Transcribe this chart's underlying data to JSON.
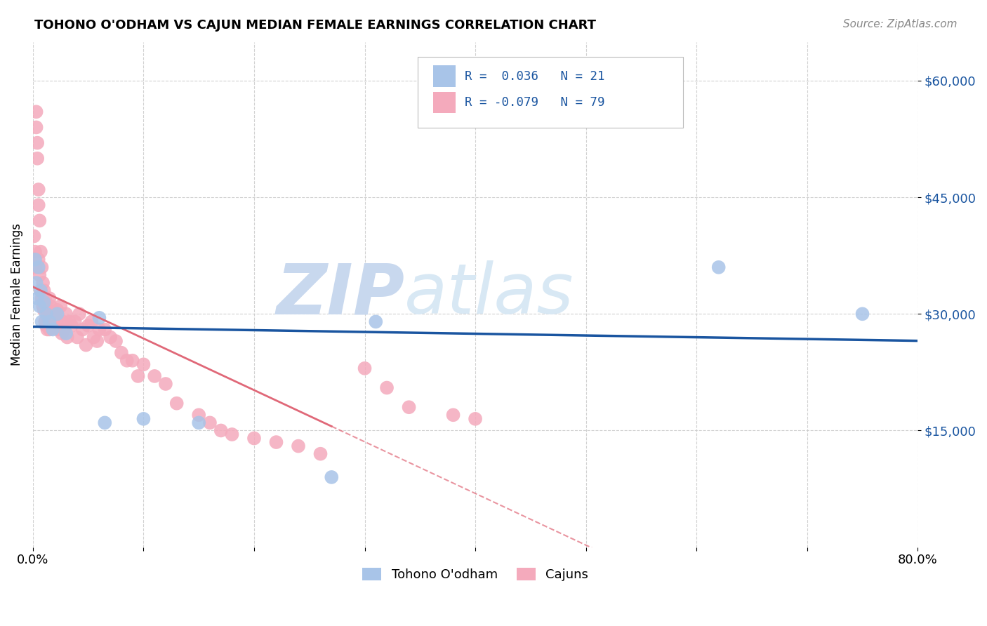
{
  "title": "TOHONO O'ODHAM VS CAJUN MEDIAN FEMALE EARNINGS CORRELATION CHART",
  "source": "Source: ZipAtlas.com",
  "ylabel": "Median Female Earnings",
  "ytick_labels": [
    "$15,000",
    "$30,000",
    "$45,000",
    "$60,000"
  ],
  "ytick_values": [
    15000,
    30000,
    45000,
    60000
  ],
  "ylim": [
    0,
    65000
  ],
  "xlim": [
    0,
    0.8
  ],
  "legend_blue_r": "0.036",
  "legend_blue_n": "21",
  "legend_pink_r": "-0.079",
  "legend_pink_n": "79",
  "legend_label_blue": "Tohono O'odham",
  "legend_label_pink": "Cajuns",
  "blue_color": "#A8C4E8",
  "pink_color": "#F4AABC",
  "blue_line_color": "#1A55A0",
  "pink_line_color": "#E06878",
  "watermark_zip": "ZIP",
  "watermark_atlas": "atlas",
  "watermark_color": "#C8D8EE",
  "blue_points_x": [
    0.002,
    0.003,
    0.004,
    0.005,
    0.006,
    0.007,
    0.008,
    0.01,
    0.012,
    0.015,
    0.018,
    0.022,
    0.03,
    0.06,
    0.065,
    0.1,
    0.15,
    0.27,
    0.31,
    0.62,
    0.75
  ],
  "blue_points_y": [
    37000,
    34000,
    32000,
    36000,
    31000,
    33000,
    29000,
    31500,
    30000,
    29000,
    28000,
    30000,
    27500,
    29500,
    16000,
    16500,
    16000,
    9000,
    29000,
    36000,
    30000
  ],
  "pink_points_x": [
    0.001,
    0.002,
    0.002,
    0.003,
    0.003,
    0.004,
    0.004,
    0.005,
    0.005,
    0.005,
    0.006,
    0.006,
    0.007,
    0.007,
    0.008,
    0.008,
    0.009,
    0.009,
    0.01,
    0.01,
    0.011,
    0.011,
    0.012,
    0.012,
    0.013,
    0.013,
    0.014,
    0.015,
    0.015,
    0.016,
    0.017,
    0.018,
    0.019,
    0.02,
    0.021,
    0.022,
    0.023,
    0.025,
    0.026,
    0.027,
    0.028,
    0.03,
    0.031,
    0.033,
    0.035,
    0.038,
    0.04,
    0.042,
    0.045,
    0.048,
    0.05,
    0.053,
    0.055,
    0.058,
    0.06,
    0.065,
    0.07,
    0.075,
    0.08,
    0.085,
    0.09,
    0.095,
    0.1,
    0.11,
    0.12,
    0.13,
    0.15,
    0.16,
    0.17,
    0.18,
    0.2,
    0.22,
    0.24,
    0.26,
    0.3,
    0.32,
    0.34,
    0.38,
    0.4
  ],
  "pink_points_y": [
    40000,
    38000,
    36000,
    56000,
    54000,
    52000,
    50000,
    46000,
    44000,
    37000,
    42000,
    35000,
    38000,
    33000,
    36000,
    32000,
    34000,
    31000,
    33000,
    30500,
    32000,
    29000,
    31000,
    28500,
    30500,
    28000,
    29500,
    32000,
    28000,
    31000,
    29500,
    30000,
    28500,
    30000,
    29000,
    30500,
    28000,
    31000,
    27500,
    29000,
    28000,
    30000,
    27000,
    29000,
    28500,
    29000,
    27000,
    30000,
    28000,
    26000,
    28500,
    29000,
    27000,
    26500,
    28000,
    28000,
    27000,
    26500,
    25000,
    24000,
    24000,
    22000,
    23500,
    22000,
    21000,
    18500,
    17000,
    16000,
    15000,
    14500,
    14000,
    13500,
    13000,
    12000,
    23000,
    20500,
    18000,
    17000,
    16500
  ]
}
